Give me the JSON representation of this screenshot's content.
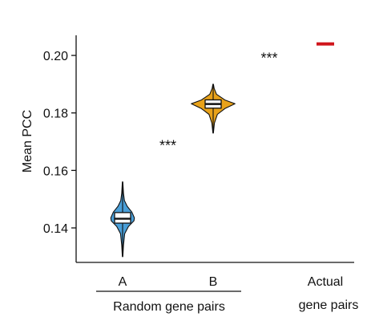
{
  "chart_data": {
    "type": "violin",
    "title": "",
    "xlabel": "",
    "ylabel": "Mean PCC",
    "ylim": [
      0.128,
      0.207
    ],
    "yticks": [
      0.14,
      0.16,
      0.18,
      0.2
    ],
    "ytick_labels": [
      "0.14",
      "0.16",
      "0.18",
      "0.20"
    ],
    "categories": [
      "A",
      "B",
      "Actual gene pairs"
    ],
    "category_line1": [
      "A",
      "B",
      "Actual"
    ],
    "category_line2": [
      "",
      "",
      "gene pairs"
    ],
    "group_label": "Random gene pairs",
    "significance_marker": "***",
    "violins": [
      {
        "category": "A",
        "color": "#4a9fd8",
        "min": 0.13,
        "max": 0.156,
        "q1": 0.1425,
        "median": 0.1432,
        "q3": 0.1445,
        "profile": [
          [
            0.13,
            0.3
          ],
          [
            0.134,
            1.0
          ],
          [
            0.138,
            2.5
          ],
          [
            0.1405,
            7.0
          ],
          [
            0.1425,
            13.5
          ],
          [
            0.1435,
            14.0
          ],
          [
            0.1455,
            11.0
          ],
          [
            0.1475,
            5.5
          ],
          [
            0.1495,
            2.2
          ],
          [
            0.152,
            1.0
          ],
          [
            0.156,
            0.3
          ]
        ]
      },
      {
        "category": "B",
        "color": "#e8a21a",
        "min": 0.173,
        "max": 0.19,
        "q1": 0.1825,
        "median": 0.1831,
        "q3": 0.1837,
        "profile": [
          [
            0.173,
            0.3
          ],
          [
            0.1765,
            1.5
          ],
          [
            0.1795,
            5.0
          ],
          [
            0.1815,
            14.0
          ],
          [
            0.1832,
            26.0
          ],
          [
            0.1845,
            14.0
          ],
          [
            0.1865,
            4.0
          ],
          [
            0.1885,
            1.2
          ],
          [
            0.19,
            0.3
          ]
        ]
      }
    ],
    "actual": {
      "category": "Actual gene pairs",
      "value": 0.204,
      "color": "#d0161c"
    },
    "annotations": [
      {
        "text": "***",
        "between": [
          "A",
          "B"
        ],
        "y": 0.17
      },
      {
        "text": "***",
        "between": [
          "B",
          "Actual gene pairs"
        ],
        "y": 0.2005
      }
    ]
  }
}
